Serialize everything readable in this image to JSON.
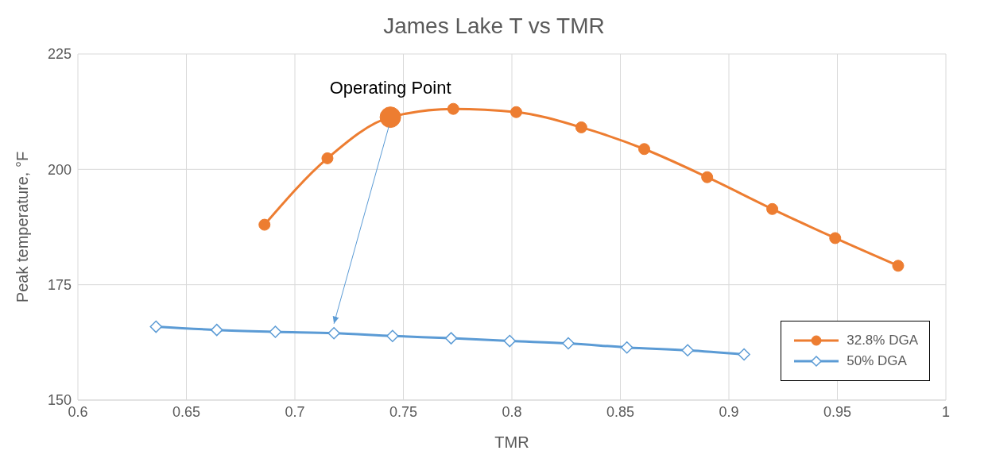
{
  "chart_data": {
    "type": "line",
    "title": "James Lake T vs TMR",
    "xlabel": "TMR",
    "ylabel": "Peak temperature, °F",
    "xlim": [
      0.6,
      1
    ],
    "xticks": [
      0.6,
      0.65,
      0.7,
      0.75,
      0.8,
      0.85,
      0.9,
      0.95,
      1
    ],
    "ylim": [
      150,
      225
    ],
    "yticks": [
      150,
      175,
      200,
      225
    ],
    "grid": true,
    "legend": "bottom right",
    "series": [
      {
        "name": "32.8% DGA",
        "color": "#ed7d31",
        "marker": "circle",
        "x": [
          0.686,
          0.715,
          0.744,
          0.773,
          0.802,
          0.832,
          0.861,
          0.89,
          0.92,
          0.949,
          0.978
        ],
        "values": [
          188,
          202.4,
          211.3,
          213.1,
          212.4,
          209.1,
          204.4,
          198.3,
          191.4,
          185.1,
          179.1
        ]
      },
      {
        "name": "50% DGA",
        "color": "#5b9bd5",
        "marker": "diamond",
        "x": [
          0.636,
          0.664,
          0.691,
          0.718,
          0.745,
          0.772,
          0.799,
          0.826,
          0.853,
          0.881,
          0.907
        ],
        "values": [
          165.9,
          165.2,
          164.8,
          164.5,
          163.9,
          163.4,
          162.8,
          162.3,
          161.4,
          160.8,
          159.9
        ]
      },
      {
        "type": "scatter",
        "color": "#ed7d31",
        "marker": "circle",
        "x": [
          0.744
        ],
        "values": [
          211.3
        ]
      }
    ],
    "annotations": [
      {
        "text": "Operating Point",
        "x": 0.744,
        "y": 211.3
      }
    ]
  }
}
